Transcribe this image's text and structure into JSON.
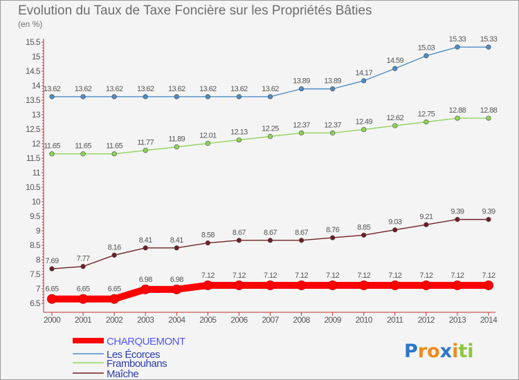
{
  "title": "Evolution du Taux de Taxe Foncière sur les Propriétés Bâties",
  "subtitle": "(en %)",
  "logo": {
    "letters": [
      "P",
      "r",
      "o",
      "x",
      "i",
      "t",
      "i"
    ],
    "colors": [
      "#2a78c8",
      "#f08a1c",
      "#f08a1c",
      "#2a78c8",
      "#f08a1c",
      "#8cc63f",
      "#8cc63f"
    ]
  },
  "chart_data": {
    "type": "line",
    "title": "Evolution du Taux de Taxe Foncière sur les Propriétés Bâties",
    "ylabel": "(en %)",
    "x": [
      "2000",
      "2001",
      "2002",
      "2003",
      "2004",
      "2005",
      "2006",
      "2007",
      "2008",
      "2009",
      "2010",
      "2011",
      "2012",
      "2013",
      "2014"
    ],
    "ylim": [
      6.5,
      15.5
    ],
    "yticks": [
      "6.5",
      "7",
      "7.5",
      "8",
      "8.5",
      "9",
      "9.5",
      "10",
      "10.5",
      "11",
      "11.5",
      "12",
      "12.5",
      "13",
      "13.5",
      "14",
      "14.5",
      "15",
      "15.5"
    ],
    "grid": false,
    "legend_position": "bottom-left",
    "series": [
      {
        "name": "CHARQUEMONT",
        "color": "#ff0000",
        "values": [
          6.65,
          6.65,
          6.65,
          6.98,
          6.98,
          7.12,
          7.12,
          7.12,
          7.12,
          7.12,
          7.12,
          7.12,
          7.12,
          7.12,
          7.12
        ],
        "labels": [
          "6.65",
          "6.65",
          "6.65",
          "6.98",
          "6.98",
          "7.12",
          "7.12",
          "7.12",
          "7.12",
          "7.12",
          "7.12",
          "7.12",
          "7.12",
          "7.12",
          "7.12"
        ]
      },
      {
        "name": "Les Écorces",
        "color": "#4d8cc4",
        "values": [
          13.62,
          13.62,
          13.62,
          13.62,
          13.62,
          13.62,
          13.62,
          13.62,
          13.89,
          13.89,
          14.17,
          14.59,
          15.03,
          15.33,
          15.33
        ],
        "labels": [
          "13.62",
          "13.62",
          "13.62",
          "13.62",
          "13.62",
          "13.62",
          "13.62",
          "13.62",
          "13.89",
          "13.89",
          "14.17",
          "14.59",
          "15.03",
          "15.33",
          "15.33"
        ]
      },
      {
        "name": "Frambouhans",
        "color": "#8ed45a",
        "values": [
          11.65,
          11.65,
          11.65,
          11.77,
          11.89,
          12.01,
          12.13,
          12.25,
          12.37,
          12.37,
          12.49,
          12.62,
          12.75,
          12.88,
          12.88
        ],
        "labels": [
          "11.65",
          "11.65",
          "11.65",
          "11.77",
          "11.89",
          "12.01",
          "12.13",
          "12.25",
          "12.37",
          "12.37",
          "12.49",
          "12.62",
          "12.75",
          "12.88",
          "12.88"
        ]
      },
      {
        "name": "Maîche",
        "color": "#6e1f23",
        "values": [
          7.69,
          7.77,
          8.16,
          8.41,
          8.41,
          8.58,
          8.67,
          8.67,
          8.67,
          8.76,
          8.85,
          9.03,
          9.21,
          9.39,
          9.39
        ],
        "labels": [
          "7.69",
          "7.77",
          "8.16",
          "8.41",
          "8.41",
          "8.58",
          "8.67",
          "8.67",
          "8.67",
          "8.76",
          "8.85",
          "9.03",
          "9.21",
          "9.39",
          "9.39"
        ]
      }
    ]
  }
}
